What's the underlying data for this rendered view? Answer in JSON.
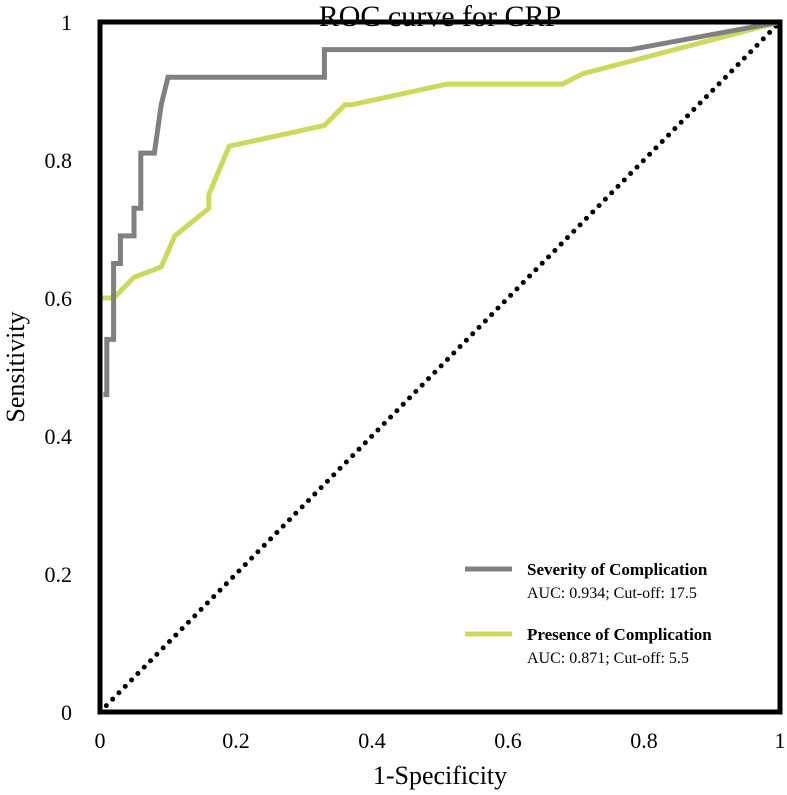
{
  "chart_data": {
    "type": "line",
    "title": "ROC curve for CRP",
    "xlabel": "1-Specificity",
    "ylabel": "Sensitivity",
    "xlim": [
      0,
      1
    ],
    "ylim": [
      0,
      1
    ],
    "xticks": [
      "0",
      "0.2",
      "0.4",
      "0.6",
      "0.8",
      "1"
    ],
    "yticks": [
      "0",
      "0.2",
      "0.4",
      "0.6",
      "0.8",
      "1"
    ],
    "grid": false,
    "legend_position": "bottom-right",
    "series": [
      {
        "name": "Severity of Complication",
        "note": "AUC: 0.934; Cut-off: 17.5",
        "color": "#808080",
        "x": [
          0.005,
          0.01,
          0.01,
          0.02,
          0.02,
          0.03,
          0.03,
          0.05,
          0.05,
          0.06,
          0.06,
          0.08,
          0.09,
          0.1,
          0.33,
          0.33,
          0.78,
          1.0
        ],
        "y": [
          0.46,
          0.46,
          0.54,
          0.54,
          0.65,
          0.65,
          0.69,
          0.69,
          0.73,
          0.73,
          0.81,
          0.81,
          0.88,
          0.92,
          0.92,
          0.96,
          0.96,
          1.0
        ]
      },
      {
        "name": "Presence of Complication",
        "note": "AUC: 0.871; Cut-off: 5.5",
        "color": "#cdd95d",
        "x": [
          0.0,
          0.02,
          0.05,
          0.09,
          0.11,
          0.16,
          0.16,
          0.19,
          0.33,
          0.36,
          0.37,
          0.51,
          0.68,
          0.71,
          1.0
        ],
        "y": [
          0.6,
          0.6,
          0.63,
          0.645,
          0.69,
          0.73,
          0.75,
          0.82,
          0.85,
          0.88,
          0.88,
          0.91,
          0.91,
          0.925,
          1.0
        ]
      },
      {
        "name": "Reference",
        "color": "#000000",
        "x": [
          0,
          1
        ],
        "y": [
          0,
          1
        ]
      }
    ]
  }
}
